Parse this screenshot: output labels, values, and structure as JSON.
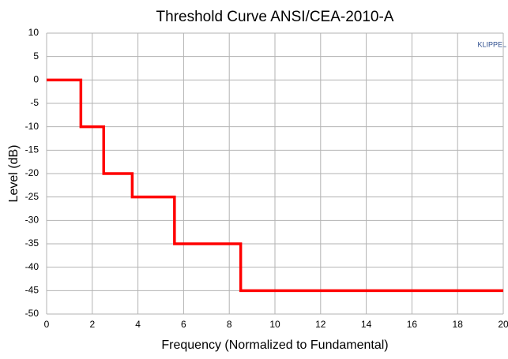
{
  "chart_data": {
    "type": "line",
    "title": "Threshold Curve ANSI/CEA-2010-A",
    "xlabel": "Frequency (Normalized to Fundamental)",
    "ylabel": "Level (dB)",
    "annotation": "KLIPPEL",
    "x": [
      0,
      1.5,
      1.5,
      2.5,
      2.5,
      3.75,
      3.75,
      5.6,
      5.6,
      8.5,
      8.5,
      20
    ],
    "series": [
      {
        "name": "Threshold",
        "color": "#ff0000",
        "values": [
          0,
          0,
          -10,
          -10,
          -20,
          -20,
          -25,
          -25,
          -35,
          -35,
          -45,
          -45
        ]
      }
    ],
    "xlim": [
      0,
      20
    ],
    "xticks": [
      0,
      2,
      4,
      6,
      8,
      10,
      12,
      14,
      16,
      18,
      20
    ],
    "ylim": [
      -50,
      10
    ],
    "yticks": [
      -50,
      -45,
      -40,
      -35,
      -30,
      -25,
      -20,
      -15,
      -10,
      -5,
      0,
      5,
      10
    ],
    "grid": true,
    "legend": false
  }
}
